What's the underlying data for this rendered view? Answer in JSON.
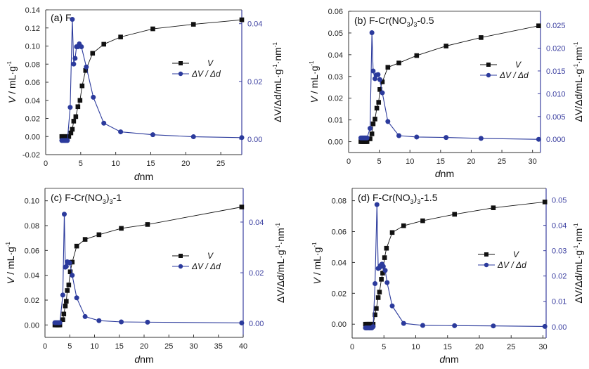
{
  "chart_data": [
    {
      "type": "line",
      "title": "(a) F",
      "title_parts": {
        "main": "(a) F",
        "sub": "",
        "tail": ""
      },
      "xlabel_italic": "d",
      "xlabel_unit": "nm",
      "ylabel_italic": "V",
      "ylabel": " / mL·g",
      "ylabel_sup": "-1",
      "y2label": "ΔV/Δd/mL·g",
      "y2label_sup1": "-1",
      "y2label_mid": "·nm",
      "y2label_sup2": "-1",
      "xlim": [
        0,
        28
      ],
      "xticks": [
        0,
        5,
        10,
        15,
        20,
        25
      ],
      "ylim": [
        -0.02,
        0.14
      ],
      "yticks": [
        -0.02,
        0.0,
        0.02,
        0.04,
        0.06,
        0.08,
        0.1,
        0.12,
        0.14
      ],
      "ytick_labels": [
        "-0.02",
        "0.00",
        "0.02",
        "0.04",
        "0.06",
        "0.08",
        "0.10",
        "0.12",
        "0.14"
      ],
      "y2lim": [
        -0.0054,
        0.0448
      ],
      "y2ticks": [
        0.0,
        0.02,
        0.04
      ],
      "y2tick_labels": [
        "0.00",
        "0.02",
        "0.04"
      ],
      "legend": {
        "position": "center-right",
        "entries": [
          "V",
          "ΔV / Δd"
        ]
      },
      "series": [
        {
          "name": "V",
          "axis": "left",
          "color": "#111111",
          "marker": "square",
          "x": [
            2.3,
            2.5,
            2.7,
            2.9,
            3.1,
            3.3,
            3.6,
            3.8,
            4.0,
            4.3,
            4.6,
            4.9,
            5.2,
            5.7,
            6.7,
            8.3,
            10.7,
            15.3,
            21.1,
            28.0
          ],
          "y": [
            0.0,
            0.0,
            0.0,
            0.0,
            0.0,
            0.0,
            0.004,
            0.008,
            0.017,
            0.022,
            0.033,
            0.04,
            0.056,
            0.073,
            0.092,
            0.102,
            0.11,
            0.119,
            0.124,
            0.129
          ]
        },
        {
          "name": "ΔV / Δd",
          "axis": "right",
          "color": "#2b3a9c",
          "marker": "circle",
          "x": [
            2.3,
            2.5,
            2.7,
            2.9,
            3.1,
            3.5,
            3.8,
            4.0,
            4.2,
            4.4,
            4.6,
            4.8,
            5.1,
            5.8,
            6.8,
            8.3,
            10.7,
            15.3,
            21.1,
            28.0
          ],
          "y": [
            -0.0005,
            -0.0005,
            -0.0005,
            -0.0005,
            -0.0005,
            0.011,
            0.0415,
            0.026,
            0.028,
            0.032,
            0.032,
            0.033,
            0.032,
            0.025,
            0.0145,
            0.0055,
            0.0025,
            0.0015,
            0.0008,
            0.0005
          ]
        }
      ]
    },
    {
      "type": "line",
      "title": "(b) F-Cr(NO3)3-0.5",
      "title_parts": {
        "main": "(b) F-Cr(NO",
        "sub": "3",
        "mid": ")",
        "sub2": "3",
        "tail": "-0.5"
      },
      "xlabel_italic": "d",
      "xlabel_unit": "nm",
      "ylabel_italic": "V",
      "ylabel": " / mL·g",
      "ylabel_sup": "-1",
      "y2label": "ΔV/Δd/mL·g",
      "y2label_sup1": "-1",
      "y2label_mid": "·nm",
      "y2label_sup2": "-1",
      "xlim": [
        0,
        31.3
      ],
      "xticks": [
        0,
        5,
        10,
        15,
        20,
        25,
        30
      ],
      "ylim": [
        -0.005,
        0.06
      ],
      "yticks": [
        0.0,
        0.01,
        0.02,
        0.03,
        0.04,
        0.05,
        0.06
      ],
      "ytick_labels": [
        "0.00",
        "0.01",
        "0.02",
        "0.03",
        "0.04",
        "0.05",
        "0.06"
      ],
      "y2lim": [
        -0.0029,
        0.0281
      ],
      "y2ticks": [
        0.0,
        0.005,
        0.01,
        0.015,
        0.02,
        0.025
      ],
      "y2tick_labels": [
        "0.000",
        "0.005",
        "0.010",
        "0.015",
        "0.020",
        "0.025"
      ],
      "legend": {
        "position": "center-right",
        "entries": [
          "V",
          "ΔV / Δd"
        ]
      },
      "series": [
        {
          "name": "V",
          "axis": "left",
          "color": "#111111",
          "marker": "square",
          "x": [
            2.0,
            2.2,
            2.4,
            2.6,
            2.8,
            3.0,
            3.5,
            3.8,
            4.0,
            4.3,
            4.6,
            4.9,
            5.1,
            5.5,
            6.4,
            8.2,
            11.1,
            15.9,
            21.6,
            31.0
          ],
          "y": [
            0.0,
            0.0,
            0.0,
            0.0,
            0.0,
            0.0,
            0.0013,
            0.0036,
            0.0082,
            0.0104,
            0.0154,
            0.0181,
            0.024,
            0.0275,
            0.0342,
            0.0362,
            0.0396,
            0.044,
            0.0479,
            0.0533
          ]
        },
        {
          "name": "ΔV / Δd",
          "axis": "right",
          "color": "#2b3a9c",
          "marker": "circle",
          "x": [
            2.0,
            2.2,
            2.4,
            2.6,
            2.8,
            3.0,
            3.5,
            3.8,
            4.0,
            4.3,
            4.5,
            4.8,
            5.1,
            5.5,
            6.4,
            8.2,
            11.1,
            15.9,
            21.6,
            31.0
          ],
          "y": [
            0.0003,
            0.0003,
            0.0003,
            0.0003,
            0.0003,
            0.0003,
            0.0024,
            0.0234,
            0.015,
            0.0133,
            0.0141,
            0.0142,
            0.0131,
            0.0102,
            0.0039,
            0.0008,
            0.0005,
            0.0004,
            0.0002,
            0.0
          ]
        }
      ]
    },
    {
      "type": "line",
      "title": "(c) F-Cr(NO3)3-1",
      "title_parts": {
        "main": "(c) F-Cr(NO",
        "sub": "3",
        "mid": ")",
        "sub2": "3",
        "tail": "-1"
      },
      "xlabel_italic": "d",
      "xlabel_unit": "nm",
      "ylabel_italic": "V",
      "ylabel": " / mL·g",
      "ylabel_sup": "-1",
      "y2label": "ΔV/Δd/mL·g",
      "y2label_sup1": "-1",
      "y2label_mid": "·nm",
      "y2label_sup2": "-1",
      "xlim": [
        0,
        40
      ],
      "xticks": [
        0,
        5,
        10,
        15,
        20,
        25,
        30,
        35,
        40
      ],
      "ylim": [
        -0.01,
        0.11
      ],
      "yticks": [
        0.0,
        0.02,
        0.04,
        0.06,
        0.08,
        0.1
      ],
      "ytick_labels": [
        "0.00",
        "0.02",
        "0.04",
        "0.06",
        "0.08",
        "0.10"
      ],
      "y2lim": [
        -0.0055,
        0.0533
      ],
      "y2ticks": [
        0.0,
        0.02,
        0.04
      ],
      "y2tick_labels": [
        "0.00",
        "0.02",
        "0.04"
      ],
      "legend": {
        "position": "center-right",
        "entries": [
          "V",
          "ΔV / Δd"
        ]
      },
      "series": [
        {
          "name": "V",
          "axis": "left",
          "color": "#111111",
          "marker": "square",
          "x": [
            2.0,
            2.2,
            2.4,
            2.6,
            2.8,
            3.0,
            3.6,
            3.8,
            4.1,
            4.3,
            4.5,
            4.8,
            5.1,
            5.5,
            6.4,
            8.1,
            10.9,
            15.4,
            20.7,
            39.7
          ],
          "y": [
            0.0,
            0.0,
            0.0,
            0.0,
            0.0,
            0.0,
            0.0043,
            0.0088,
            0.0153,
            0.0191,
            0.0277,
            0.0322,
            0.0428,
            0.0506,
            0.0635,
            0.0689,
            0.0727,
            0.0778,
            0.0809,
            0.095
          ]
        },
        {
          "name": "ΔV / Δd",
          "axis": "right",
          "color": "#2b3a9c",
          "marker": "circle",
          "x": [
            2.0,
            2.2,
            2.4,
            2.6,
            2.8,
            3.0,
            3.6,
            3.9,
            4.1,
            4.3,
            4.5,
            4.8,
            5.0,
            5.5,
            6.4,
            8.1,
            10.9,
            15.4,
            20.7,
            39.7
          ],
          "y": [
            0.0003,
            0.0003,
            0.0003,
            0.0003,
            0.0003,
            0.0003,
            0.0112,
            0.0431,
            0.0222,
            0.0225,
            0.0243,
            0.0241,
            0.0239,
            0.019,
            0.0101,
            0.0027,
            0.0011,
            0.0006,
            0.0005,
            0.0002
          ]
        }
      ]
    },
    {
      "type": "line",
      "title": "(d) F-Cr(NO3)3-1.5",
      "title_parts": {
        "main": "(d) F-Cr(NO",
        "sub": "3",
        "mid": ")",
        "sub2": "3",
        "tail": "-1.5"
      },
      "xlabel_italic": "d",
      "xlabel_unit": "nm",
      "ylabel_italic": "V",
      "ylabel": " / mL·g",
      "ylabel_sup": "-1",
      "y2label": "ΔV/Δd/mL·g",
      "y2label_sup1": "-1",
      "y2label_mid": "·nm",
      "y2label_sup2": "-1",
      "xlim": [
        0,
        30.5
      ],
      "xticks": [
        0,
        5,
        10,
        15,
        20,
        25,
        30
      ],
      "ylim": [
        -0.009,
        0.088
      ],
      "yticks": [
        0.0,
        0.02,
        0.04,
        0.06,
        0.08
      ],
      "ytick_labels": [
        "0.00",
        "0.02",
        "0.04",
        "0.06",
        "0.08"
      ],
      "y2lim": [
        -0.0045,
        0.0546
      ],
      "y2ticks": [
        0.0,
        0.01,
        0.02,
        0.03,
        0.04,
        0.05
      ],
      "y2tick_labels": [
        "0.00",
        "0.01",
        "0.02",
        "0.03",
        "0.04",
        "0.05"
      ],
      "legend": {
        "position": "center-right",
        "entries": [
          "V",
          "ΔV / Δd"
        ]
      },
      "series": [
        {
          "name": "V",
          "axis": "left",
          "color": "#111111",
          "marker": "square",
          "x": [
            2.1,
            2.3,
            2.5,
            2.7,
            2.9,
            3.1,
            3.3,
            3.6,
            3.8,
            4.1,
            4.3,
            4.6,
            4.8,
            5.1,
            5.4,
            6.3,
            8.1,
            11.1,
            16.1,
            22.2,
            30.3
          ],
          "y": [
            0.0,
            0.0,
            0.0,
            0.0,
            0.0,
            0.0,
            0.0,
            0.0061,
            0.0102,
            0.0172,
            0.0208,
            0.0291,
            0.0331,
            0.0431,
            0.0492,
            0.0594,
            0.0638,
            0.067,
            0.0712,
            0.0754,
            0.0792
          ]
        },
        {
          "name": "ΔV / Δd",
          "axis": "right",
          "color": "#2b3a9c",
          "marker": "circle",
          "x": [
            2.1,
            2.3,
            2.5,
            2.7,
            2.9,
            3.1,
            3.3,
            3.6,
            3.9,
            4.1,
            4.3,
            4.5,
            4.7,
            4.9,
            5.2,
            5.5,
            6.3,
            8.1,
            11.1,
            16.1,
            22.2,
            30.3
          ],
          "y": [
            -0.0005,
            -0.0005,
            -0.0005,
            -0.0005,
            -0.0005,
            -0.0005,
            0.0,
            0.017,
            0.0482,
            0.023,
            0.0233,
            0.0242,
            0.0247,
            0.0238,
            0.0222,
            0.0174,
            0.0082,
            0.0013,
            0.0005,
            0.0004,
            0.0003,
            0.0001
          ]
        }
      ]
    }
  ]
}
